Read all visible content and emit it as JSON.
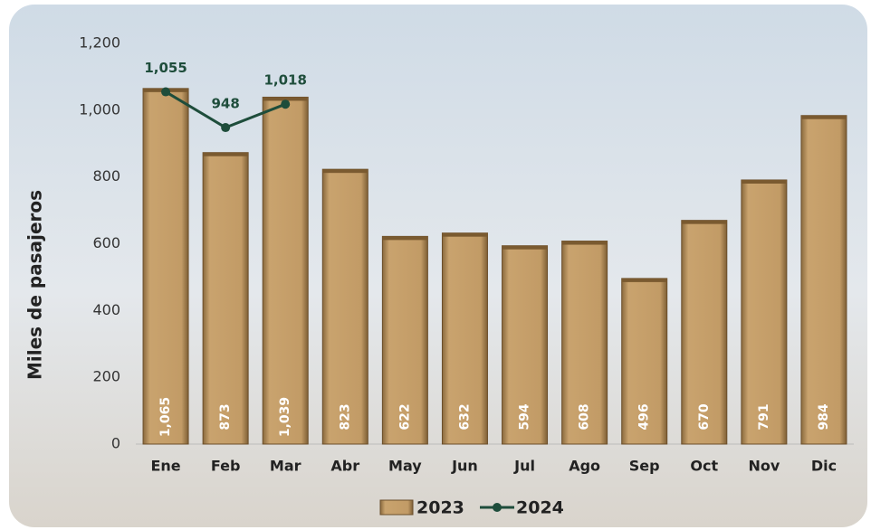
{
  "chart_data": {
    "type": "bar",
    "y_label": "Miles de pasajeros",
    "categories": [
      "Ene",
      "Feb",
      "Mar",
      "Abr",
      "May",
      "Jun",
      "Jul",
      "Ago",
      "Sep",
      "Oct",
      "Nov",
      "Dic"
    ],
    "series": [
      {
        "name": "2023",
        "type": "bar",
        "color": "#c29b66",
        "values": [
          1065,
          873,
          1039,
          823,
          622,
          632,
          594,
          608,
          496,
          670,
          791,
          984
        ],
        "value_labels": [
          "1,065",
          "873",
          "1,039",
          "823",
          "622",
          "632",
          "594",
          "608",
          "496",
          "670",
          "791",
          "984"
        ]
      },
      {
        "name": "2024",
        "type": "line",
        "color": "#1e4d3b",
        "values": [
          1055,
          948,
          1018,
          null,
          null,
          null,
          null,
          null,
          null,
          null,
          null,
          null
        ],
        "value_labels": [
          "1,055",
          "948",
          "1,018",
          null,
          null,
          null,
          null,
          null,
          null,
          null,
          null,
          null
        ]
      }
    ],
    "ylim": [
      0,
      1200
    ],
    "yticks": [
      0,
      200,
      400,
      600,
      800,
      {
        "value": 1000,
        "label": "1,000"
      },
      {
        "value": 1200,
        "label": "1,200"
      }
    ],
    "legend": "bottom"
  }
}
